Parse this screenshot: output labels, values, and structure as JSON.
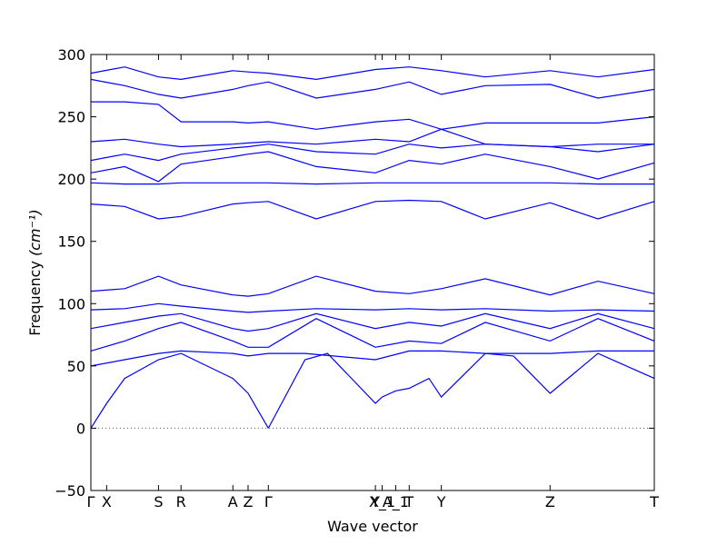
{
  "chart_data": {
    "type": "line",
    "xlabel": "Wave vector",
    "ylabel_main": "Frequency ",
    "ylabel_unit": "(cm⁻¹)",
    "ylim": [
      -50,
      300
    ],
    "yticks": [
      -50,
      0,
      50,
      100,
      150,
      200,
      250,
      300
    ],
    "high_symmetry_points": [
      {
        "label": "Γ",
        "x": 0.0
      },
      {
        "label": "X",
        "x": 0.028
      },
      {
        "label": "S",
        "x": 0.12
      },
      {
        "label": "R",
        "x": 0.16
      },
      {
        "label": "A",
        "x": 0.252
      },
      {
        "label": "Z",
        "x": 0.279
      },
      {
        "label": "Γ",
        "x": 0.315
      },
      {
        "label": "Y",
        "x": 0.505
      },
      {
        "label": "X_1",
        "x": 0.517
      },
      {
        "label": "A_1",
        "x": 0.541
      },
      {
        "label": "T",
        "x": 0.565
      },
      {
        "label": "Y",
        "x": 0.622
      },
      {
        "label": "Z",
        "x": 0.815
      },
      {
        "label": "T",
        "x": 1.0
      }
    ],
    "grid": false,
    "zero_line": true,
    "series_color": "#0000ff",
    "bands": [
      {
        "x": [
          0,
          0.028,
          0.06,
          0.12,
          0.16,
          0.252,
          0.279,
          0.315
        ],
        "y": [
          0,
          20,
          40,
          55,
          60,
          40,
          28,
          0
        ]
      },
      {
        "x": [
          0.315,
          0.38,
          0.42,
          0.505,
          0.517,
          0.541,
          0.565,
          0.6,
          0.622,
          0.7,
          0.75,
          0.815,
          0.9,
          1.0
        ],
        "y": [
          0,
          55,
          60,
          20,
          25,
          30,
          32,
          40,
          25,
          60,
          58,
          28,
          60,
          40
        ]
      },
      {
        "x": [
          0,
          0.06,
          0.12,
          0.16,
          0.252,
          0.279,
          0.315,
          0.38,
          0.505,
          0.565,
          0.622,
          0.7,
          0.815,
          0.9,
          1.0
        ],
        "y": [
          50,
          55,
          60,
          62,
          60,
          58,
          60,
          60,
          55,
          62,
          62,
          60,
          60,
          62,
          62
        ]
      },
      {
        "x": [
          0,
          0.06,
          0.12,
          0.16,
          0.252,
          0.279,
          0.315,
          0.4,
          0.505,
          0.565,
          0.622,
          0.7,
          0.815,
          0.9,
          1.0
        ],
        "y": [
          62,
          70,
          80,
          85,
          70,
          65,
          65,
          88,
          65,
          70,
          68,
          85,
          70,
          88,
          70
        ]
      },
      {
        "x": [
          0,
          0.06,
          0.12,
          0.16,
          0.252,
          0.279,
          0.315,
          0.4,
          0.505,
          0.565,
          0.622,
          0.7,
          0.815,
          0.9,
          1.0
        ],
        "y": [
          80,
          85,
          90,
          92,
          80,
          78,
          80,
          92,
          80,
          85,
          82,
          92,
          80,
          92,
          80
        ]
      },
      {
        "x": [
          0,
          0.06,
          0.12,
          0.16,
          0.252,
          0.279,
          0.315,
          0.4,
          0.505,
          0.565,
          0.622,
          0.7,
          0.815,
          0.9,
          1.0
        ],
        "y": [
          95,
          96,
          100,
          98,
          94,
          93,
          94,
          96,
          95,
          96,
          95,
          96,
          94,
          95,
          94
        ]
      },
      {
        "x": [
          0,
          0.06,
          0.12,
          0.16,
          0.252,
          0.279,
          0.315,
          0.4,
          0.505,
          0.565,
          0.622,
          0.7,
          0.815,
          0.9,
          1.0
        ],
        "y": [
          110,
          112,
          122,
          115,
          107,
          106,
          108,
          122,
          110,
          108,
          112,
          120,
          107,
          118,
          108
        ]
      },
      {
        "x": [
          0,
          0.06,
          0.12,
          0.16,
          0.252,
          0.279,
          0.315,
          0.4,
          0.505,
          0.565,
          0.622,
          0.7,
          0.815,
          0.9,
          1.0
        ],
        "y": [
          180,
          178,
          168,
          170,
          180,
          181,
          182,
          168,
          182,
          183,
          182,
          168,
          181,
          168,
          182
        ]
      },
      {
        "x": [
          0,
          0.06,
          0.12,
          0.16,
          0.252,
          0.279,
          0.315,
          0.4,
          0.505,
          0.565,
          0.622,
          0.7,
          0.815,
          0.9,
          1.0
        ],
        "y": [
          197,
          196,
          196,
          197,
          197,
          197,
          197,
          196,
          197,
          197,
          197,
          197,
          197,
          196,
          196
        ]
      },
      {
        "x": [
          0,
          0.06,
          0.12,
          0.16,
          0.252,
          0.279,
          0.315,
          0.4,
          0.505,
          0.565,
          0.622,
          0.7,
          0.815,
          0.9,
          1.0
        ],
        "y": [
          205,
          210,
          198,
          212,
          218,
          220,
          222,
          210,
          205,
          215,
          212,
          220,
          210,
          200,
          213
        ]
      },
      {
        "x": [
          0,
          0.06,
          0.12,
          0.16,
          0.252,
          0.279,
          0.315,
          0.4,
          0.505,
          0.565,
          0.622,
          0.7,
          0.815,
          0.9,
          1.0
        ],
        "y": [
          215,
          220,
          215,
          220,
          225,
          226,
          228,
          222,
          220,
          228,
          225,
          228,
          226,
          222,
          228
        ]
      },
      {
        "x": [
          0,
          0.06,
          0.12,
          0.16,
          0.252,
          0.279,
          0.315,
          0.4,
          0.505,
          0.565,
          0.622,
          0.7,
          0.815,
          0.9,
          1.0
        ],
        "y": [
          230,
          232,
          228,
          226,
          228,
          229,
          230,
          228,
          232,
          230,
          240,
          228,
          226,
          228,
          228
        ]
      },
      {
        "x": [
          0,
          0.06,
          0.12,
          0.16,
          0.252,
          0.279,
          0.315,
          0.4,
          0.505,
          0.565,
          0.622,
          0.7,
          0.815,
          0.9,
          1.0
        ],
        "y": [
          262,
          262,
          260,
          246,
          246,
          245,
          246,
          240,
          246,
          248,
          240,
          245,
          245,
          245,
          250
        ]
      },
      {
        "x": [
          0,
          0.06,
          0.12,
          0.16,
          0.252,
          0.279,
          0.315,
          0.4,
          0.505,
          0.565,
          0.622,
          0.7,
          0.815,
          0.9,
          1.0
        ],
        "y": [
          280,
          275,
          268,
          265,
          272,
          275,
          278,
          265,
          272,
          278,
          268,
          275,
          276,
          265,
          272
        ]
      },
      {
        "x": [
          0,
          0.06,
          0.12,
          0.16,
          0.252,
          0.279,
          0.315,
          0.4,
          0.505,
          0.565,
          0.622,
          0.7,
          0.815,
          0.9,
          1.0
        ],
        "y": [
          285,
          290,
          282,
          280,
          287,
          286,
          285,
          280,
          288,
          290,
          287,
          282,
          287,
          282,
          288
        ]
      }
    ]
  }
}
